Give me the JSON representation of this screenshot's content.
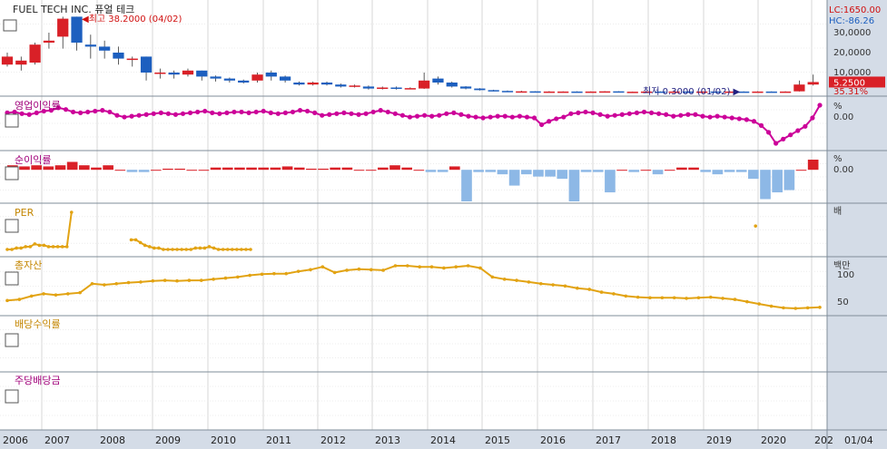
{
  "chart_data": [
    {
      "type": "candlestick",
      "title": "FUEL TECH INC. 퓨얼 테크",
      "lc_label": "LC:1650.00",
      "hc_label": "HC:-86.26",
      "max_annotation": "최고 38.2000 (04/02)",
      "min_annotation": "최저 0.3000 (01/02)",
      "y_ticks": [
        "30,0000",
        "20,0000",
        "10,0000"
      ],
      "last_price": "5.2500",
      "last_pct": "35.31%",
      "candles": [
        {
          "o": 14,
          "c": 18,
          "h": 20,
          "l": 13
        },
        {
          "o": 14,
          "c": 16,
          "h": 18,
          "l": 11
        },
        {
          "o": 15,
          "c": 24,
          "h": 25,
          "l": 14
        },
        {
          "o": 25,
          "c": 26,
          "h": 30,
          "l": 22
        },
        {
          "o": 28,
          "c": 37,
          "h": 38,
          "l": 22
        },
        {
          "o": 38,
          "c": 25,
          "h": 38,
          "l": 21
        },
        {
          "o": 24,
          "c": 23,
          "h": 29,
          "l": 17
        },
        {
          "o": 23,
          "c": 21,
          "h": 26,
          "l": 17
        },
        {
          "o": 20,
          "c": 17,
          "h": 23,
          "l": 14
        },
        {
          "o": 17,
          "c": 17,
          "h": 18,
          "l": 13
        },
        {
          "o": 18,
          "c": 10,
          "h": 18,
          "l": 6
        },
        {
          "o": 10,
          "c": 10,
          "h": 12,
          "l": 7
        },
        {
          "o": 10,
          "c": 9,
          "h": 11,
          "l": 7
        },
        {
          "o": 9,
          "c": 11,
          "h": 12,
          "l": 8
        },
        {
          "o": 11,
          "c": 8,
          "h": 11,
          "l": 6
        },
        {
          "o": 8,
          "c": 7,
          "h": 8.5,
          "l": 5.5
        },
        {
          "o": 7,
          "c": 6,
          "h": 7.5,
          "l": 5
        },
        {
          "o": 6,
          "c": 5,
          "h": 6.5,
          "l": 4.5
        },
        {
          "o": 6,
          "c": 9,
          "h": 10,
          "l": 5
        },
        {
          "o": 10,
          "c": 8,
          "h": 11,
          "l": 6
        },
        {
          "o": 8,
          "c": 6,
          "h": 8.5,
          "l": 5
        },
        {
          "o": 5,
          "c": 4,
          "h": 5.5,
          "l": 3.5
        },
        {
          "o": 4,
          "c": 5,
          "h": 5.5,
          "l": 3.5
        },
        {
          "o": 5,
          "c": 4,
          "h": 5.5,
          "l": 3.5
        },
        {
          "o": 4,
          "c": 3,
          "h": 4.5,
          "l": 2.5
        },
        {
          "o": 3,
          "c": 3.5,
          "h": 4,
          "l": 2.5
        },
        {
          "o": 3,
          "c": 2,
          "h": 3.5,
          "l": 1.5
        },
        {
          "o": 2,
          "c": 2.5,
          "h": 3,
          "l": 1.5
        },
        {
          "o": 2.5,
          "c": 2,
          "h": 3,
          "l": 1.5
        },
        {
          "o": 2,
          "c": 2.2,
          "h": 2.6,
          "l": 1.6
        },
        {
          "o": 2,
          "c": 6,
          "h": 10,
          "l": 1.8
        },
        {
          "o": 7,
          "c": 5,
          "h": 8,
          "l": 4
        },
        {
          "o": 5,
          "c": 3,
          "h": 5.5,
          "l": 2.5
        },
        {
          "o": 3,
          "c": 2,
          "h": 3.2,
          "l": 1.6
        },
        {
          "o": 2,
          "c": 1.2,
          "h": 2.2,
          "l": 1
        },
        {
          "o": 1.2,
          "c": 0.8,
          "h": 1.4,
          "l": 0.6
        },
        {
          "o": 0.8,
          "c": 0.6,
          "h": 1,
          "l": 0.5
        },
        {
          "o": 0.6,
          "c": 0.6,
          "h": 0.9,
          "l": 0.4
        },
        {
          "o": 0.6,
          "c": 0.5,
          "h": 0.7,
          "l": 0.4
        },
        {
          "o": 0.5,
          "c": 0.5,
          "h": 0.7,
          "l": 0.4
        },
        {
          "o": 0.5,
          "c": 0.5,
          "h": 0.6,
          "l": 0.4
        },
        {
          "o": 0.5,
          "c": 0.4,
          "h": 0.6,
          "l": 0.3
        },
        {
          "o": 0.4,
          "c": 0.5,
          "h": 0.6,
          "l": 0.3
        },
        {
          "o": 0.5,
          "c": 0.6,
          "h": 0.7,
          "l": 0.4
        },
        {
          "o": 0.6,
          "c": 0.4,
          "h": 0.7,
          "l": 0.3
        },
        {
          "o": 0.4,
          "c": 0.4,
          "h": 0.5,
          "l": 0.3
        },
        {
          "o": 0.4,
          "c": 0.5,
          "h": 0.6,
          "l": 0.3
        },
        {
          "o": 0.5,
          "c": 0.4,
          "h": 0.6,
          "l": 0.3
        },
        {
          "o": 0.4,
          "c": 0.5,
          "h": 0.6,
          "l": 0.3
        },
        {
          "o": 0.5,
          "c": 0.4,
          "h": 0.6,
          "l": 0.3
        },
        {
          "o": 0.4,
          "c": 0.5,
          "h": 0.6,
          "l": 0.3
        },
        {
          "o": 0.5,
          "c": 0.4,
          "h": 0.6,
          "l": 0.3
        },
        {
          "o": 0.4,
          "c": 0.5,
          "h": 0.6,
          "l": 0.3
        },
        {
          "o": 0.5,
          "c": 0.4,
          "h": 0.6,
          "l": 0.3
        },
        {
          "o": 0.4,
          "c": 0.5,
          "h": 0.6,
          "l": 0.3
        },
        {
          "o": 0.5,
          "c": 0.4,
          "h": 0.6,
          "l": 0.3
        },
        {
          "o": 0.4,
          "c": 0.5,
          "h": 0.6,
          "l": 0.3
        },
        {
          "o": 0.6,
          "c": 4,
          "h": 6,
          "l": 0.5
        },
        {
          "o": 4,
          "c": 5.25,
          "h": 9,
          "l": 3.5
        }
      ]
    },
    {
      "type": "line",
      "title": "영업이익률",
      "y_ticks": [
        "%",
        "0.00"
      ],
      "values": [
        1,
        2,
        0,
        -1,
        1,
        3,
        4,
        7,
        5,
        2,
        1,
        2,
        3,
        4,
        2,
        -2,
        -4,
        -3,
        -2,
        -1,
        0,
        1,
        0,
        -1,
        0,
        1,
        2,
        3,
        1,
        0,
        1,
        2,
        2,
        1,
        2,
        3,
        1,
        0,
        1,
        2,
        4,
        3,
        1,
        -2,
        -1,
        0,
        1,
        0,
        -1,
        0,
        2,
        4,
        2,
        0,
        -2,
        -4,
        -3,
        -2,
        -3,
        -2,
        0,
        1,
        -1,
        -3,
        -4,
        -5,
        -4,
        -3,
        -3,
        -4,
        -3,
        -4,
        -5,
        -13,
        -9,
        -6,
        -4,
        0,
        1,
        2,
        1,
        -1,
        -3,
        -2,
        -1,
        0,
        1,
        2,
        1,
        0,
        -1,
        -3,
        -2,
        -1,
        -1,
        -3,
        -4,
        -3,
        -4,
        -5,
        -6,
        -7,
        -9,
        -14,
        -22,
        -35,
        -30,
        -25,
        -20,
        -15,
        -5,
        10
      ],
      "color": "#CC0099"
    },
    {
      "type": "bar",
      "title": "순이익률",
      "y_ticks": [
        "%",
        "0.00"
      ],
      "values": [
        2,
        1.5,
        2,
        1.5,
        2,
        3.5,
        2,
        1,
        2,
        0,
        -1,
        -1,
        0,
        0.5,
        0.5,
        0,
        0,
        1,
        1,
        1,
        1,
        1,
        1,
        1.5,
        1,
        0.5,
        0.5,
        1,
        1,
        0,
        0,
        1,
        2,
        1,
        0,
        -1,
        -1,
        1.5,
        -14,
        -1,
        -1,
        -2,
        -7,
        -2,
        -3,
        -3,
        -4,
        -14,
        -1,
        -1,
        -10,
        0,
        -1,
        0,
        -2,
        0,
        1,
        1,
        -1,
        -2,
        -1,
        -1,
        -4,
        -13,
        -10,
        -9,
        0,
        4.5
      ],
      "pos_color": "#D92027",
      "neg_color": "#8DB8E6"
    },
    {
      "type": "line",
      "title": "PER",
      "y_ticks": [
        "배"
      ],
      "values": [
        1,
        1,
        2,
        2,
        3,
        3,
        5,
        4,
        4,
        3,
        3,
        3,
        3,
        3,
        28,
        null,
        null,
        null,
        null,
        null,
        null,
        null,
        null,
        null,
        null,
        null,
        null,
        8,
        8,
        6,
        4,
        3,
        2,
        2,
        1,
        1,
        1,
        1,
        1,
        1,
        1,
        2,
        2,
        2,
        3,
        2,
        1,
        1,
        1,
        1,
        1,
        1,
        1,
        1,
        null,
        null,
        null,
        null,
        null,
        null,
        null,
        null,
        null,
        null,
        null,
        null,
        null,
        null,
        null,
        null,
        null,
        null,
        null,
        null,
        null,
        null,
        null,
        null,
        null,
        null,
        null,
        null,
        null,
        null,
        null,
        null,
        null,
        null,
        null,
        null,
        null,
        null,
        null,
        null,
        null,
        null,
        null,
        null,
        null,
        null,
        null,
        null,
        null,
        null,
        null,
        null,
        null,
        null,
        null,
        null,
        null,
        null,
        null,
        null,
        null,
        null,
        null,
        null,
        null,
        null,
        null,
        null,
        null,
        null,
        null,
        null,
        null,
        null,
        null,
        null,
        null,
        null,
        null,
        null,
        null,
        null,
        null,
        null,
        null,
        null,
        null,
        null,
        null,
        null,
        null,
        null,
        null,
        null,
        null,
        null,
        null,
        null,
        null,
        null,
        null,
        null,
        null,
        null,
        null,
        null,
        null,
        null,
        null,
        18,
        null,
        null,
        null,
        null,
        null,
        null,
        null,
        null,
        null,
        null,
        null,
        null,
        null,
        null
      ],
      "color": "#E2A313"
    },
    {
      "type": "line",
      "title": "총자산",
      "y_ticks": [
        "백만",
        "100",
        "50"
      ],
      "values": [
        50,
        52,
        58,
        62,
        60,
        62,
        64,
        80,
        78,
        80,
        82,
        83,
        85,
        86,
        85,
        86,
        86,
        88,
        90,
        92,
        95,
        97,
        98,
        98,
        102,
        105,
        110,
        100,
        104,
        106,
        105,
        104,
        112,
        112,
        110,
        110,
        108,
        110,
        112,
        108,
        92,
        88,
        86,
        83,
        80,
        78,
        76,
        72,
        70,
        65,
        62,
        58,
        56,
        55,
        55,
        55,
        54,
        55,
        56,
        54,
        52,
        48,
        44,
        40,
        37,
        36,
        37,
        38
      ],
      "color": "#E2A313"
    },
    {
      "type": "line",
      "title": "배당수익률",
      "values": []
    },
    {
      "type": "line",
      "title": "주당배당금",
      "values": []
    },
    {
      "type": "axis",
      "categories": [
        "2006",
        "2007",
        "2008",
        "2009",
        "2010",
        "2011",
        "2012",
        "2013",
        "2014",
        "2015",
        "2016",
        "2017",
        "2018",
        "2019",
        "2020",
        "202"
      ],
      "tail_label": "01/04"
    }
  ],
  "colors": {
    "up": "#D92027",
    "down": "#1D5FBF",
    "grid": "#D7D7D7",
    "axis_bg": "#D4DCE7",
    "border": "#7F8C9A"
  }
}
